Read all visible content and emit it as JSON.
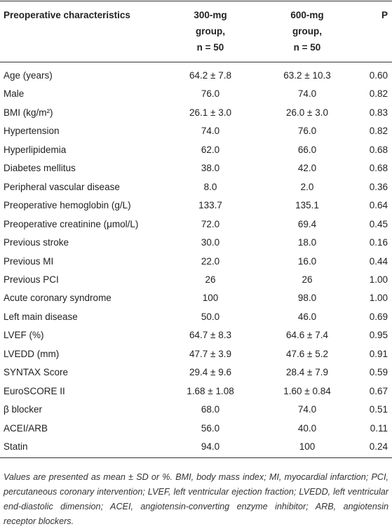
{
  "table": {
    "header": [
      [
        "Preoperative characteristics"
      ],
      [
        "300-mg",
        "group,",
        "n = 50"
      ],
      [
        "600-mg",
        "group,",
        "n = 50"
      ],
      [
        "P"
      ]
    ],
    "rows": [
      [
        "Age (years)",
        "64.2 ± 7.8",
        "63.2 ± 10.3",
        "0.60"
      ],
      [
        "Male",
        "76.0",
        "74.0",
        "0.82"
      ],
      [
        "BMI (kg/m²)",
        "26.1 ± 3.0",
        "26.0 ± 3.0",
        "0.83"
      ],
      [
        "Hypertension",
        "74.0",
        "76.0",
        "0.82"
      ],
      [
        "Hyperlipidemia",
        "62.0",
        "66.0",
        "0.68"
      ],
      [
        "Diabetes mellitus",
        "38.0",
        "42.0",
        "0.68"
      ],
      [
        "Peripheral vascular disease",
        "8.0",
        "2.0",
        "0.36"
      ],
      [
        "Preoperative hemoglobin (g/L)",
        "133.7",
        "135.1",
        "0.64"
      ],
      [
        "Preoperative creatinine (μmol/L)",
        "72.0",
        "69.4",
        "0.45"
      ],
      [
        "Previous stroke",
        "30.0",
        "18.0",
        "0.16"
      ],
      [
        "Previous MI",
        "22.0",
        "16.0",
        "0.44"
      ],
      [
        "Previous PCI",
        "26",
        "26",
        "1.00"
      ],
      [
        "Acute coronary syndrome",
        "100",
        "98.0",
        "1.00"
      ],
      [
        "Left main disease",
        "50.0",
        "46.0",
        "0.69"
      ],
      [
        "LVEF (%)",
        "64.7 ± 8.3",
        "64.6 ± 7.4",
        "0.95"
      ],
      [
        "LVEDD (mm)",
        "47.7 ± 3.9",
        "47.6 ± 5.2",
        "0.91"
      ],
      [
        "SYNTAX Score",
        "29.4 ± 9.6",
        "28.4 ± 7.9",
        "0.59"
      ],
      [
        "EuroSCORE II",
        "1.68 ± 1.08",
        "1.60 ± 0.84",
        "0.67"
      ],
      [
        "β blocker",
        "68.0",
        "74.0",
        "0.51"
      ],
      [
        "ACEI/ARB",
        "56.0",
        "40.0",
        "0.11"
      ],
      [
        "Statin",
        "94.0",
        "100",
        "0.24"
      ]
    ],
    "footnote": "Values are presented as mean ± SD or %. BMI, body mass index; MI, myocardial infarction; PCI, percutaneous coronary intervention; LVEF, left ventricular ejection fraction; LVEDD, left ventricular end-diastolic dimension; ACEI, angiotensin-converting enzyme inhibitor; ARB, angiotensin receptor blockers."
  }
}
